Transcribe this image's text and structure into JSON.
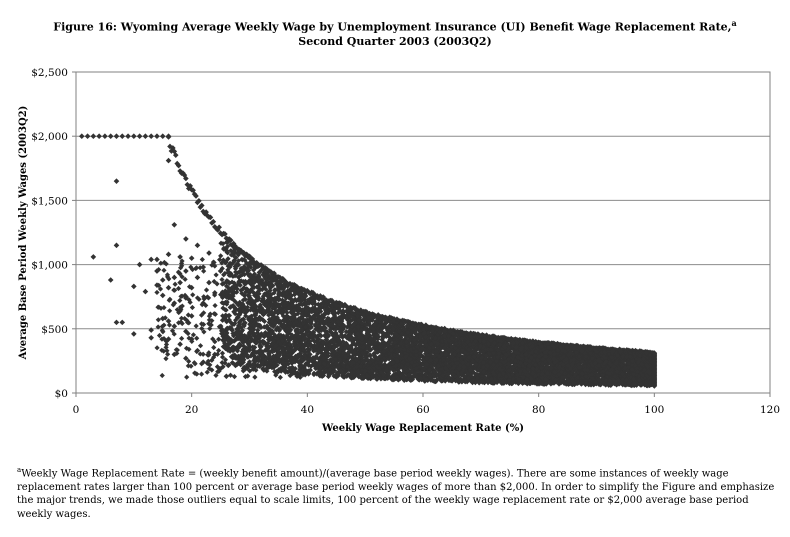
{
  "chart_data": {
    "type": "scatter",
    "title_line1": "Figure 16: Wyoming Average Weekly Wage by Unemployment Insurance (UI) Benefit Wage Replacement Rate,",
    "title_marker": "a",
    "title_line2": "Second Quarter 2003 (2003Q2)",
    "xlabel": "Weekly Wage Replacement Rate (%)",
    "ylabel": "Average Base Period Weekly Wages (2003Q2)",
    "xlim": [
      0,
      120
    ],
    "ylim": [
      0,
      2500
    ],
    "x_ticks": [
      "0",
      "20",
      "40",
      "60",
      "80",
      "100",
      "120"
    ],
    "y_ticks": [
      "$0",
      "$500",
      "$1,000",
      "$1,500",
      "$2,000",
      "$2,500"
    ],
    "grid": "horizontal",
    "legend": "none",
    "marker": "diamond",
    "marker_color": "#333333",
    "cap_line": {
      "x_max": 16,
      "y": 2000
    },
    "upper_bound_curve": {
      "formula": "y = 320 * 100 / x",
      "x_range": [
        16,
        100
      ]
    },
    "band_lower_bound_curve": {
      "formula": "y = 55 * 100 / x",
      "x_range": [
        25,
        100
      ]
    },
    "dense_band_x_range": [
      25,
      100
    ],
    "scattered_points": [
      [
        3,
        1060
      ],
      [
        6,
        880
      ],
      [
        7,
        1650
      ],
      [
        7,
        1150
      ],
      [
        7,
        550
      ],
      [
        8,
        550
      ],
      [
        10,
        830
      ],
      [
        10,
        460
      ],
      [
        11,
        1000
      ],
      [
        12,
        790
      ],
      [
        13,
        430
      ],
      [
        13,
        490
      ],
      [
        13,
        1040
      ],
      [
        14,
        1040
      ],
      [
        14,
        840
      ],
      [
        14,
        950
      ],
      [
        15,
        880
      ],
      [
        15,
        760
      ],
      [
        15,
        580
      ],
      [
        16,
        1810
      ],
      [
        16,
        1080
      ],
      [
        16,
        820
      ],
      [
        16,
        560
      ],
      [
        16,
        420
      ],
      [
        17,
        1310
      ],
      [
        17,
        900
      ],
      [
        17,
        700
      ],
      [
        17,
        520
      ],
      [
        17,
        300
      ],
      [
        18,
        1060
      ],
      [
        18,
        860
      ],
      [
        18,
        640
      ],
      [
        18,
        380
      ],
      [
        19,
        1200
      ],
      [
        19,
        950
      ],
      [
        19,
        740
      ],
      [
        19,
        480
      ],
      [
        19,
        270
      ],
      [
        20,
        1050
      ],
      [
        20,
        820
      ],
      [
        20,
        600
      ],
      [
        20,
        420
      ],
      [
        21,
        1150
      ],
      [
        21,
        900
      ],
      [
        21,
        330
      ],
      [
        22,
        980
      ],
      [
        22,
        700
      ],
      [
        22,
        240
      ],
      [
        23,
        1090
      ],
      [
        23,
        860
      ],
      [
        23,
        540
      ],
      [
        24,
        780
      ],
      [
        24,
        300
      ],
      [
        25,
        950
      ],
      [
        26,
        600
      ],
      [
        26,
        130
      ]
    ],
    "footnote_marker": "a",
    "footnote": "Weekly Wage Replacement Rate = (weekly benefit amount)/(average base period weekly wages). There are some instances of weekly wage replacement rates larger than 100 percent or average base period weekly wages of more than $2,000. In order to simplify the Figure and emphasize the major trends, we made those outliers equal to scale limits, 100 percent of the weekly wage replacement rate or $2,000 average base period weekly wages."
  }
}
